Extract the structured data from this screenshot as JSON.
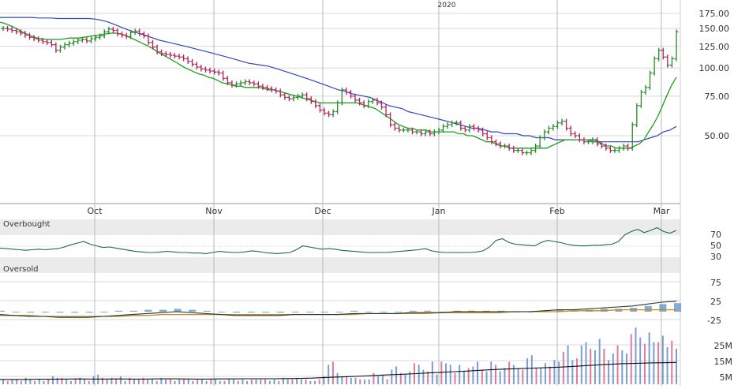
{
  "year_label": "2020",
  "colors": {
    "up": "#2a8a2a",
    "down": "#b0245a",
    "sma_short": "#1aa11a",
    "sma_long": "#3346b8",
    "rsi": "#1f6e3c",
    "macd_line": "#1f3c2c",
    "macd_signal": "#c8881e",
    "macd_hist": "#5b8fc8",
    "volume_up": "#7a9ed0",
    "volume_down": "#e07a9a",
    "volume_avg": "#111111",
    "grid": "#d8d8d8",
    "band": "#ebebeb",
    "month_line": "#b8b8b8"
  },
  "price_panel": {
    "scale": "log",
    "y_ticks": [
      "175.00",
      "150.00",
      "125.00",
      "100.00",
      "75.00",
      "50.00"
    ]
  },
  "x_labels": [
    "Oct",
    "Nov",
    "Dec",
    "Jan",
    "Feb",
    "Mar"
  ],
  "rsi_panel": {
    "overbought_label": "Overbought",
    "oversold_label": "Oversold",
    "y_ticks": [
      "70",
      "50",
      "30"
    ]
  },
  "macd_panel": {
    "y_ticks": [
      "75",
      "25",
      "-25"
    ]
  },
  "volume_panel": {
    "y_ticks": [
      "25M",
      "15M",
      "5M"
    ]
  },
  "chart_data": {
    "type": "ohlc",
    "x_start": "2019-09-11",
    "x_end": "2020-03-04",
    "close": [
      150,
      149,
      147,
      145,
      143,
      140,
      137,
      135,
      133,
      131,
      130,
      127,
      120,
      124,
      127,
      129,
      131,
      133,
      134,
      132,
      135,
      137,
      139,
      145,
      149,
      147,
      142,
      140,
      138,
      144,
      146,
      142,
      139,
      130,
      124,
      118,
      116,
      115,
      114,
      113,
      112,
      110,
      107,
      104,
      101,
      99,
      98,
      97,
      96,
      95,
      90,
      86,
      84,
      85,
      86,
      87,
      86,
      85,
      83,
      82,
      81,
      80,
      79,
      76,
      74,
      73,
      74,
      75,
      76,
      73,
      71,
      68,
      65,
      63,
      62,
      64,
      70,
      80,
      78,
      75,
      72,
      70,
      68,
      71,
      72,
      70,
      67,
      62,
      56,
      54,
      53,
      53,
      53,
      52,
      52,
      51,
      52,
      51,
      52,
      53,
      55,
      56,
      57,
      57,
      54,
      53,
      55,
      54,
      53,
      51,
      49,
      47,
      46,
      45,
      45,
      44,
      43,
      43,
      42,
      42,
      43,
      45,
      49,
      52,
      54,
      55,
      57,
      58,
      54,
      51,
      50,
      48,
      47,
      47,
      48,
      46,
      45,
      44,
      43,
      43,
      44,
      45,
      44,
      56,
      68,
      78,
      82,
      95,
      110,
      120,
      112,
      103,
      110,
      145
    ],
    "sma_short": [
      160,
      158,
      155,
      152,
      148,
      144,
      141,
      138,
      136,
      135,
      134,
      134,
      134,
      134,
      135,
      136,
      136,
      136,
      137,
      138,
      139,
      140,
      141,
      142,
      143,
      143,
      142,
      140,
      137,
      134,
      131,
      128,
      125,
      122,
      118,
      115,
      112,
      109,
      106,
      103,
      100,
      98,
      96,
      94,
      93,
      91,
      90,
      88,
      86,
      85,
      84,
      83,
      83,
      82,
      82,
      82,
      82,
      81,
      80,
      80,
      79,
      78,
      77,
      76,
      75,
      74,
      73,
      72,
      71,
      70,
      70,
      70,
      70,
      70,
      70,
      70,
      70,
      70,
      69,
      68,
      67,
      66,
      64,
      62,
      60,
      58,
      56,
      55,
      54,
      54,
      53,
      53,
      53,
      52,
      52,
      52,
      52,
      52,
      52,
      51,
      51,
      50,
      50,
      49,
      48,
      47,
      47,
      46,
      45,
      45,
      44,
      44,
      44,
      44,
      44,
      44,
      44,
      44,
      44,
      45,
      46,
      47,
      48,
      48,
      48,
      48,
      48,
      48,
      47,
      47,
      46,
      45,
      45,
      44,
      44,
      44,
      44,
      45,
      46,
      48,
      52,
      56,
      61,
      68,
      76,
      84,
      91
    ],
    "sma_long": [
      168,
      168,
      168,
      168,
      168,
      168,
      167,
      167,
      167,
      166,
      166,
      166,
      166,
      166,
      166,
      165,
      163,
      160,
      156,
      152,
      148,
      145,
      142,
      139,
      136,
      133,
      131,
      129,
      127,
      125,
      123,
      121,
      119,
      117,
      115,
      113,
      111,
      109,
      107,
      105,
      104,
      103,
      102,
      100,
      98,
      96,
      94,
      92,
      90,
      88,
      86,
      84,
      82,
      80,
      79,
      77,
      76,
      75,
      74,
      72,
      70,
      68,
      67,
      66,
      64,
      63,
      62,
      61,
      60,
      59,
      58,
      57,
      56,
      55,
      54,
      54,
      53,
      52,
      52,
      51,
      51,
      51,
      50,
      50,
      49,
      49,
      49,
      48,
      48,
      48,
      48,
      48,
      48,
      48,
      47,
      47,
      47,
      47,
      47,
      47,
      47,
      48,
      49,
      50,
      52,
      53,
      55
    ],
    "rsi": [
      48,
      47,
      46,
      45,
      44,
      45,
      46,
      45,
      46,
      47,
      50,
      54,
      57,
      60,
      55,
      52,
      49,
      50,
      48,
      46,
      44,
      42,
      41,
      40,
      40,
      41,
      42,
      41,
      40,
      40,
      39,
      39,
      38,
      40,
      42,
      41,
      40,
      40,
      41,
      43,
      42,
      40,
      39,
      38,
      39,
      40,
      45,
      52,
      50,
      48,
      46,
      47,
      46,
      44,
      43,
      42,
      41,
      40,
      40,
      40,
      40,
      41,
      42,
      43,
      44,
      45,
      47,
      43,
      41,
      40,
      40,
      40,
      40,
      40,
      41,
      43,
      50,
      62,
      65,
      58,
      55,
      54,
      53,
      52,
      58,
      62,
      60,
      58,
      55,
      53,
      52,
      52,
      53,
      53,
      54,
      55,
      60,
      72,
      78,
      82,
      76,
      80,
      85,
      78,
      75,
      80
    ],
    "macd": [
      -3,
      -4,
      -5,
      -5,
      -6,
      -6,
      -6,
      -5,
      -4,
      -3,
      -2,
      -1,
      0,
      -1,
      -2,
      -3,
      -4,
      -4,
      -4,
      -4,
      -3,
      -3,
      -3,
      -3,
      -2,
      -2,
      -2,
      -2,
      -1,
      -1,
      -1,
      0,
      0,
      0,
      0,
      0,
      0,
      1,
      2,
      2,
      3,
      4,
      5,
      6,
      8,
      10,
      11
    ],
    "macd_signal": [
      -4,
      -4,
      -4,
      -5,
      -5,
      -5,
      -5,
      -5,
      -5,
      -4,
      -4,
      -3,
      -3,
      -3,
      -3,
      -3,
      -3,
      -3,
      -3,
      -3,
      -3,
      -3,
      -3,
      -3,
      -3,
      -2,
      -2,
      -2,
      -2,
      -2,
      -1,
      -1,
      -1,
      -1,
      -1,
      0,
      0,
      0,
      0,
      1,
      1,
      1,
      2,
      2,
      2,
      2,
      2
    ],
    "volume_M": [
      3,
      2,
      3,
      3,
      2,
      4,
      3,
      2,
      3,
      2,
      3,
      5,
      4,
      4,
      3,
      2,
      3,
      4,
      3,
      2,
      5,
      6,
      4,
      3,
      4,
      3,
      5,
      2,
      4,
      3,
      3,
      4,
      3,
      3,
      2,
      4,
      3,
      3,
      2,
      3,
      3,
      3,
      2,
      3,
      3,
      2,
      3,
      3,
      2,
      2,
      3,
      3,
      2,
      3,
      2,
      3,
      3,
      3,
      3,
      2,
      3,
      2,
      4,
      3,
      3,
      4,
      3,
      3,
      2,
      2,
      3,
      5,
      12,
      14,
      7,
      5,
      5,
      4,
      4,
      3,
      3,
      3,
      7,
      5,
      6,
      3,
      9,
      11,
      7,
      6,
      8,
      13,
      12,
      9,
      8,
      14,
      6,
      14,
      13,
      12,
      7,
      12,
      8,
      10,
      11,
      14,
      9,
      8,
      14,
      12,
      8,
      10,
      14,
      12,
      10,
      9,
      16,
      18,
      10,
      10,
      13,
      11,
      15,
      14,
      20,
      24,
      15,
      16,
      24,
      26,
      22,
      21,
      28,
      22,
      15,
      19,
      24,
      21,
      19,
      31,
      35,
      29,
      25,
      32,
      26,
      26,
      30,
      23,
      27,
      22
    ],
    "volume_avg_M": [
      3.0,
      3.0,
      3.0,
      3.1,
      3.1,
      3.2,
      3.3,
      3.2,
      3.2,
      3.3,
      3.2,
      3.2,
      3.3,
      3.4,
      3.3,
      3.2,
      3.2,
      3.3,
      3.3,
      3.4,
      3.4,
      3.4,
      3.5,
      3.6,
      3.8,
      4.2,
      4.5,
      4.8,
      5.1,
      5.5,
      5.9,
      6.2,
      6.6,
      7.0,
      7.4,
      7.8,
      8.2,
      8.7,
      9.1,
      9.4,
      9.7,
      10.0,
      10.3,
      10.6,
      11.0,
      11.5,
      12.0,
      12.4,
      12.8,
      13.0,
      13.2,
      13.3,
      13.5
    ]
  }
}
